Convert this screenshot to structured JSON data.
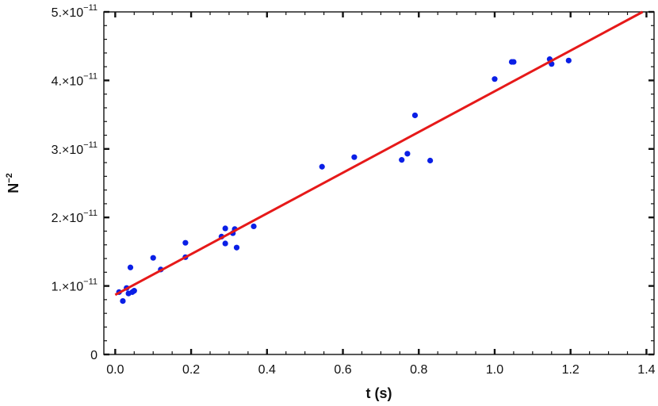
{
  "chart_data": {
    "type": "scatter",
    "title": "",
    "xlabel": "t (s)",
    "ylabel_base": "N",
    "ylabel_exp": "−2",
    "xlim": [
      -0.03,
      1.42
    ],
    "ylim": [
      0,
      5e-11
    ],
    "grid": false,
    "x_ticks": [
      {
        "v": 0.0,
        "label": "0.0"
      },
      {
        "v": 0.2,
        "label": "0.2"
      },
      {
        "v": 0.4,
        "label": "0.4"
      },
      {
        "v": 0.6,
        "label": "0.6"
      },
      {
        "v": 0.8,
        "label": "0.8"
      },
      {
        "v": 1.0,
        "label": "1.0"
      },
      {
        "v": 1.2,
        "label": "1.2"
      },
      {
        "v": 1.4,
        "label": "1.4"
      }
    ],
    "y_ticks": [
      {
        "v": 0,
        "mant": "0",
        "exp": ""
      },
      {
        "v": 1e-11,
        "mant": "1.×10",
        "exp": "−11"
      },
      {
        "v": 2e-11,
        "mant": "2.×10",
        "exp": "−11"
      },
      {
        "v": 3e-11,
        "mant": "3.×10",
        "exp": "−11"
      },
      {
        "v": 4e-11,
        "mant": "4.×10",
        "exp": "−11"
      },
      {
        "v": 5e-11,
        "mant": "5.×10",
        "exp": "−11"
      }
    ],
    "points_color": "#0a1fe6",
    "fit_color": "#e61919",
    "points": [
      [
        0.01,
        9.1e-12
      ],
      [
        0.02,
        7.8e-12
      ],
      [
        0.03,
        9.7e-12
      ],
      [
        0.035,
        8.9e-12
      ],
      [
        0.04,
        1.27e-11
      ],
      [
        0.045,
        9.1e-12
      ],
      [
        0.05,
        9.3e-12
      ],
      [
        0.1,
        1.41e-11
      ],
      [
        0.12,
        1.24e-11
      ],
      [
        0.185,
        1.63e-11
      ],
      [
        0.185,
        1.42e-11
      ],
      [
        0.28,
        1.72e-11
      ],
      [
        0.29,
        1.84e-11
      ],
      [
        0.29,
        1.62e-11
      ],
      [
        0.31,
        1.77e-11
      ],
      [
        0.315,
        1.83e-11
      ],
      [
        0.32,
        1.56e-11
      ],
      [
        0.365,
        1.87e-11
      ],
      [
        0.545,
        2.74e-11
      ],
      [
        0.63,
        2.88e-11
      ],
      [
        0.755,
        2.84e-11
      ],
      [
        0.77,
        2.93e-11
      ],
      [
        0.79,
        3.49e-11
      ],
      [
        0.83,
        2.83e-11
      ],
      [
        1.0,
        4.02e-11
      ],
      [
        1.045,
        4.27e-11
      ],
      [
        1.05,
        4.27e-11
      ],
      [
        1.145,
        4.31e-11
      ],
      [
        1.15,
        4.24e-11
      ],
      [
        1.195,
        4.29e-11
      ]
    ],
    "fit_line": {
      "x0": 0.0,
      "y0": 8.7e-12,
      "x1": 1.39,
      "y1": 5e-11
    }
  }
}
